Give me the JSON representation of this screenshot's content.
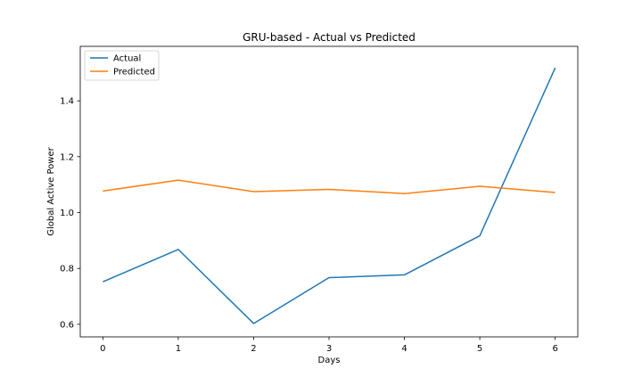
{
  "chart_data": {
    "type": "line",
    "title": "GRU-based - Actual vs Predicted",
    "xlabel": "Days",
    "ylabel": "Global Active Power",
    "x": [
      0,
      1,
      2,
      3,
      4,
      5,
      6
    ],
    "xlim": [
      -0.3,
      6.3
    ],
    "ylim": [
      0.555,
      1.595
    ],
    "xticks": [
      0,
      1,
      2,
      3,
      4,
      5,
      6
    ],
    "yticks": [
      0.6,
      0.8,
      1.0,
      1.2,
      1.4
    ],
    "ytick_labels": [
      "0.6",
      "0.8",
      "1.0",
      "1.2",
      "1.4"
    ],
    "grid": false,
    "legend_position": "upper-left",
    "series": [
      {
        "name": "Actual",
        "color": "#1f77b4",
        "values": [
          0.752,
          0.868,
          0.603,
          0.767,
          0.777,
          0.917,
          1.518
        ]
      },
      {
        "name": "Predicted",
        "color": "#ff7f0e",
        "values": [
          1.077,
          1.116,
          1.075,
          1.083,
          1.068,
          1.094,
          1.072
        ]
      }
    ]
  }
}
